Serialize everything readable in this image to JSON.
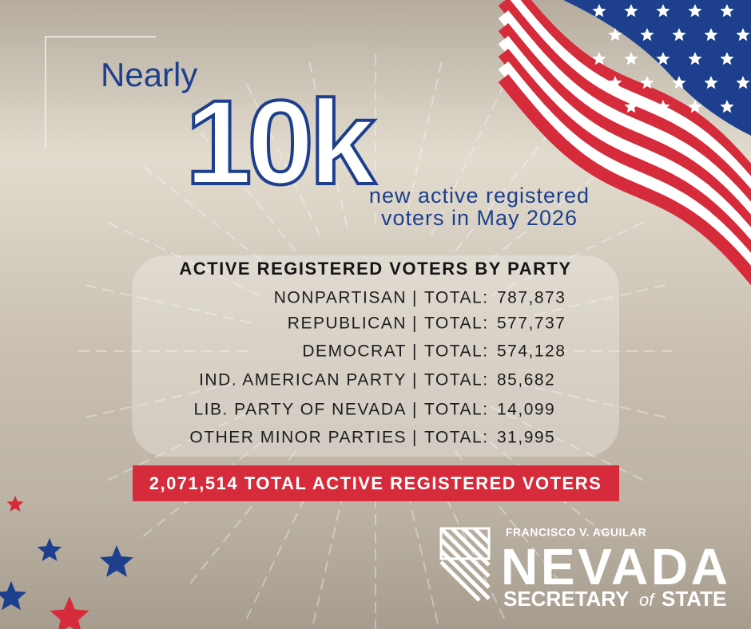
{
  "headline": {
    "lead": "Nearly",
    "figure": "10k",
    "lines": [
      "new active registered",
      "voters in May 2026"
    ]
  },
  "table": {
    "title": "ACTIVE REGISTERED VOTERS BY PARTY",
    "separator": "|",
    "total_prefix": "TOTAL:",
    "rows": [
      {
        "party": "NONPARTISAN",
        "total": "787,873"
      },
      {
        "party": "REPUBLICAN",
        "total": "577,737"
      },
      {
        "party": "DEMOCRAT",
        "total": "574,128"
      },
      {
        "party": "IND. AMERICAN PARTY",
        "total": "85,682"
      },
      {
        "party": "LIB. PARTY OF NEVADA",
        "total": "14,099"
      },
      {
        "party": "OTHER MINOR PARTIES",
        "total": "31,995"
      }
    ]
  },
  "banner": "2,071,514 TOTAL ACTIVE REGISTERED VOTERS",
  "logo": {
    "name": "FRANCISCO V. AGUILAR",
    "state": "NEVADA",
    "office": "SECRETARY",
    "of": "of",
    "office2": "STATE"
  }
}
